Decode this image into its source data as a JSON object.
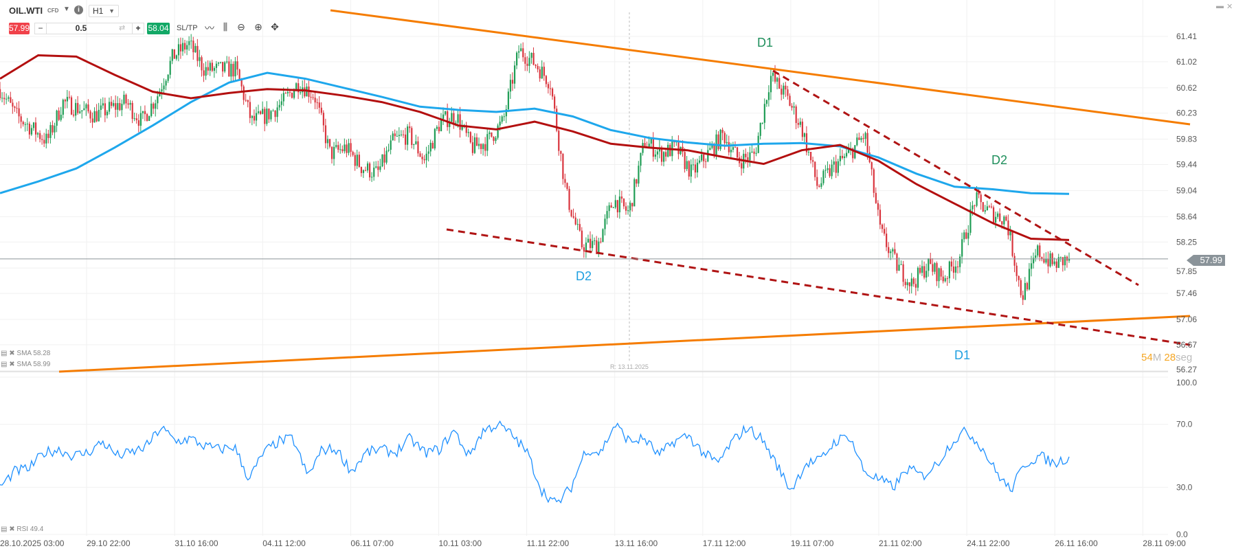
{
  "header": {
    "symbol": "OIL.WTI",
    "instrument_type": "CFD",
    "timeframe": "H1",
    "sell_price": "57.99",
    "buy_price": "58.04",
    "volume": "0.5",
    "minus": "−",
    "plus": "+",
    "sltp_label": "SL/TP",
    "icons": [
      "chevron-down-icon",
      "info-icon",
      "swap-icon",
      "line-chart-icon",
      "candlestick-icon",
      "zoom-out-icon",
      "zoom-in-icon",
      "crosshair-icon",
      "minimize-icon",
      "close-icon"
    ]
  },
  "colors": {
    "bull": "#1f9d55",
    "bear": "#d9343d",
    "sma_short": "#b30f0f",
    "sma_long": "#1ea7ec",
    "channel": "#f57c00",
    "wedge": "#b01414",
    "rsi": "#1e90ff",
    "sell": "#f0414a",
    "buy": "#12a866",
    "label_green": "#1f8f5c",
    "label_blue": "#1e9fe0",
    "countdown": "#f5a623"
  },
  "chart_data": {
    "type": "candlestick",
    "price_axis_ticks": [
      "61.41",
      "61.02",
      "60.62",
      "60.23",
      "59.83",
      "59.44",
      "59.04",
      "58.64",
      "58.25",
      "57.85",
      "57.46",
      "57.06",
      "56.67",
      "56.27"
    ],
    "price_range": [
      56.27,
      61.41
    ],
    "current_price": "57.99",
    "time_axis_ticks": [
      "28.10.2025 03:00",
      "29.10 22:00",
      "31.10 16:00",
      "04.11 12:00",
      "06.11 07:00",
      "10.11 03:00",
      "11.11 22:00",
      "13.11 16:00",
      "17.11 12:00",
      "19.11 07:00",
      "21.11 02:00",
      "24.11 22:00",
      "26.11 16:00",
      "28.11 09:00"
    ],
    "price_path": [
      60.6,
      60.2,
      60.0,
      59.8,
      60.4,
      60.3,
      60.2,
      60.3,
      60.4,
      60.1,
      60.5,
      61.1,
      61.3,
      60.9,
      60.9,
      60.9,
      60.1,
      60.2,
      60.4,
      60.7,
      60.5,
      59.6,
      59.7,
      59.4,
      59.3,
      59.8,
      59.9,
      59.5,
      60.1,
      60.2,
      59.7,
      59.8,
      60.1,
      61.2,
      61.0,
      60.7,
      59.0,
      58.2,
      58.2,
      58.9,
      58.7,
      59.8,
      59.6,
      59.7,
      59.3,
      59.6,
      59.9,
      59.5,
      59.6,
      60.8,
      60.5,
      60.0,
      59.1,
      59.4,
      59.6,
      59.9,
      58.4,
      57.9,
      57.6,
      57.9,
      57.7,
      58.0,
      58.9,
      58.7,
      58.6,
      57.4,
      58.1,
      57.9,
      57.99
    ],
    "sma_short": {
      "label": "SMA 58.28",
      "values": [
        60.76,
        61.12,
        61.1,
        60.82,
        60.56,
        60.46,
        60.54,
        60.6,
        60.58,
        60.5,
        60.4,
        60.25,
        60.04,
        59.98,
        60.1,
        59.95,
        59.76,
        59.7,
        59.66,
        59.55,
        59.45,
        59.66,
        59.74,
        59.5,
        59.14,
        58.84,
        58.54,
        58.3,
        58.28
      ]
    },
    "sma_long": {
      "label": "SMA 58.99",
      "values": [
        59.0,
        59.18,
        59.38,
        59.7,
        60.04,
        60.4,
        60.7,
        60.85,
        60.76,
        60.62,
        60.48,
        60.33,
        60.28,
        60.25,
        60.3,
        60.18,
        59.97,
        59.85,
        59.78,
        59.73,
        59.76,
        59.77,
        59.72,
        59.55,
        59.3,
        59.1,
        59.06,
        59.0,
        58.99
      ]
    },
    "rsi": {
      "label": "RSI 49.4",
      "axis_ticks": [
        "100.0",
        "70.0",
        "30.0",
        "0.0"
      ],
      "range": [
        0,
        100
      ],
      "values": [
        30,
        40,
        42,
        52,
        54,
        50,
        52,
        59,
        50,
        52,
        56,
        68,
        59,
        61,
        56,
        54,
        56,
        35,
        52,
        59,
        61,
        37,
        54,
        54,
        40,
        52,
        54,
        52,
        61,
        52,
        54,
        66,
        50,
        66,
        70,
        63,
        52,
        28,
        19,
        30,
        54,
        52,
        70,
        59,
        61,
        50,
        59,
        63,
        52,
        45,
        59,
        68,
        61,
        45,
        28,
        45,
        47,
        59,
        63,
        40,
        35,
        30,
        42,
        37,
        45,
        59,
        66,
        56,
        40,
        28,
        45,
        50,
        45,
        49.4
      ]
    },
    "annotations": [
      {
        "text": "D1",
        "color": "green"
      },
      {
        "text": "D2",
        "color": "green"
      },
      {
        "text": "D2",
        "color": "blue"
      },
      {
        "text": "D1",
        "color": "blue"
      }
    ],
    "vertical_marker": "R: 13.11.2025",
    "countdown": {
      "minutes": "54",
      "minutes_unit": "M",
      "seconds": "28",
      "seconds_unit": "seg"
    }
  }
}
